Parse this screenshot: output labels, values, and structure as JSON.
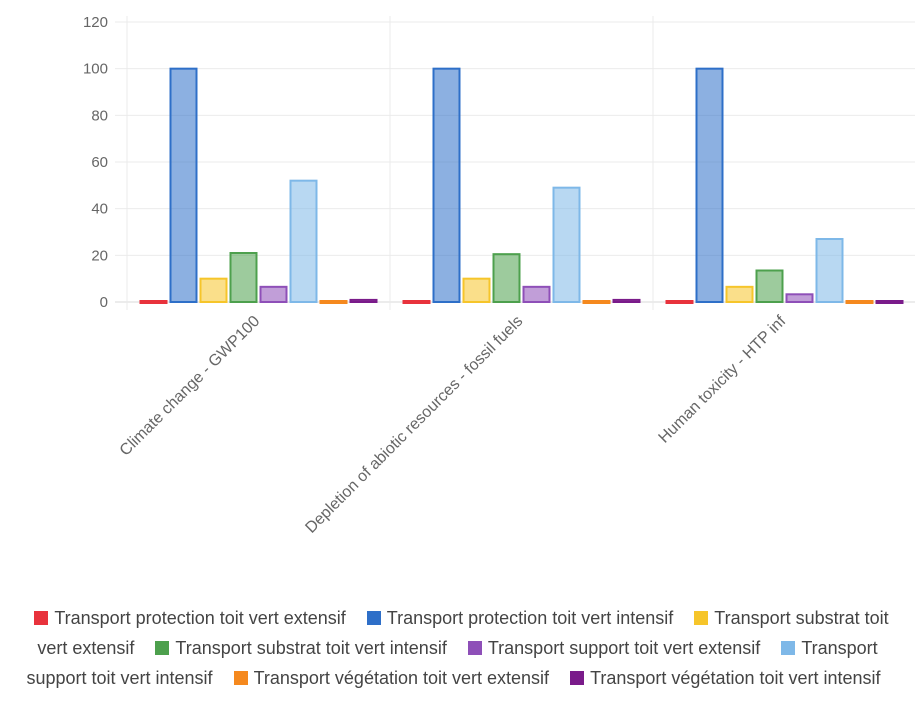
{
  "chart_data": {
    "type": "bar",
    "categories": [
      "Climate change - GWP100",
      "Depletion of abiotic resources - fossil fuels",
      "Human toxicity - HTP inf"
    ],
    "ylim": [
      0,
      120
    ],
    "yticks": [
      0,
      20,
      40,
      60,
      80,
      100,
      120
    ],
    "grid": true,
    "legend_position": "bottom",
    "series": [
      {
        "name": "Transport protection toit vert extensif",
        "color": "#e8323c",
        "values": [
          0.8,
          0.8,
          0.5
        ]
      },
      {
        "name": "Transport protection toit vert intensif",
        "color": "#2e6fc8",
        "values": [
          100,
          100,
          100
        ]
      },
      {
        "name": "Transport substrat toit vert extensif",
        "color": "#f6c52a",
        "values": [
          10,
          10,
          6.5
        ]
      },
      {
        "name": "Transport substrat toit vert intensif",
        "color": "#4da04d",
        "values": [
          21,
          20.5,
          13.5
        ]
      },
      {
        "name": "Transport support toit vert extensif",
        "color": "#8e4fb8",
        "values": [
          6.5,
          6.5,
          3.3
        ]
      },
      {
        "name": "Transport support toit vert intensif",
        "color": "#7eb8e8",
        "values": [
          52,
          49,
          27
        ]
      },
      {
        "name": "Transport végétation toit vert extensif",
        "color": "#f5891e",
        "values": [
          -0.5,
          -0.5,
          -0.5
        ]
      },
      {
        "name": "Transport végétation toit vert intensif",
        "color": "#7a1b8a",
        "values": [
          0.9,
          0.9,
          0.6
        ]
      }
    ]
  }
}
